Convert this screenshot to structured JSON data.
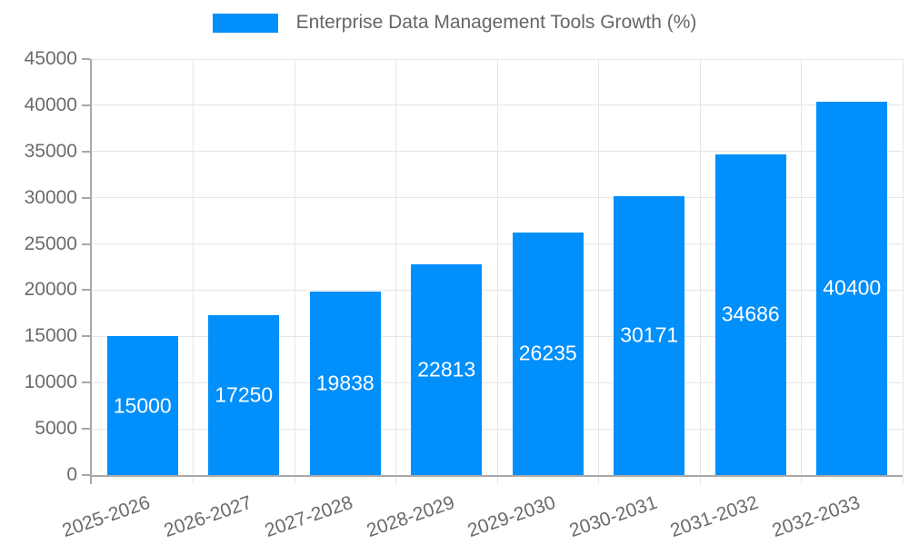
{
  "chart_data": {
    "type": "bar",
    "title": "Enterprise Data Management Tools Growth (%)",
    "categories": [
      "2025-2026",
      "2026-2027",
      "2027-2028",
      "2028-2029",
      "2029-2030",
      "2030-2031",
      "2031-2032",
      "2032-2033"
    ],
    "values": [
      15000,
      17250,
      19838,
      22813,
      26235,
      30171,
      34686,
      40400
    ],
    "xlabel": "",
    "ylabel": "",
    "ylim": [
      0,
      45000
    ],
    "yticks": [
      0,
      5000,
      10000,
      15000,
      20000,
      25000,
      30000,
      35000,
      40000,
      45000
    ],
    "grid": true,
    "legend_position": "top-center",
    "colors": {
      "bar": "#008ffb",
      "value_label": "#ffffff",
      "axis_text": "#6b6b6b",
      "legend_text": "#666666",
      "grid_line": "#e6e6e6",
      "axis_line": "#a8a8a8",
      "background": "#ffffff"
    }
  }
}
